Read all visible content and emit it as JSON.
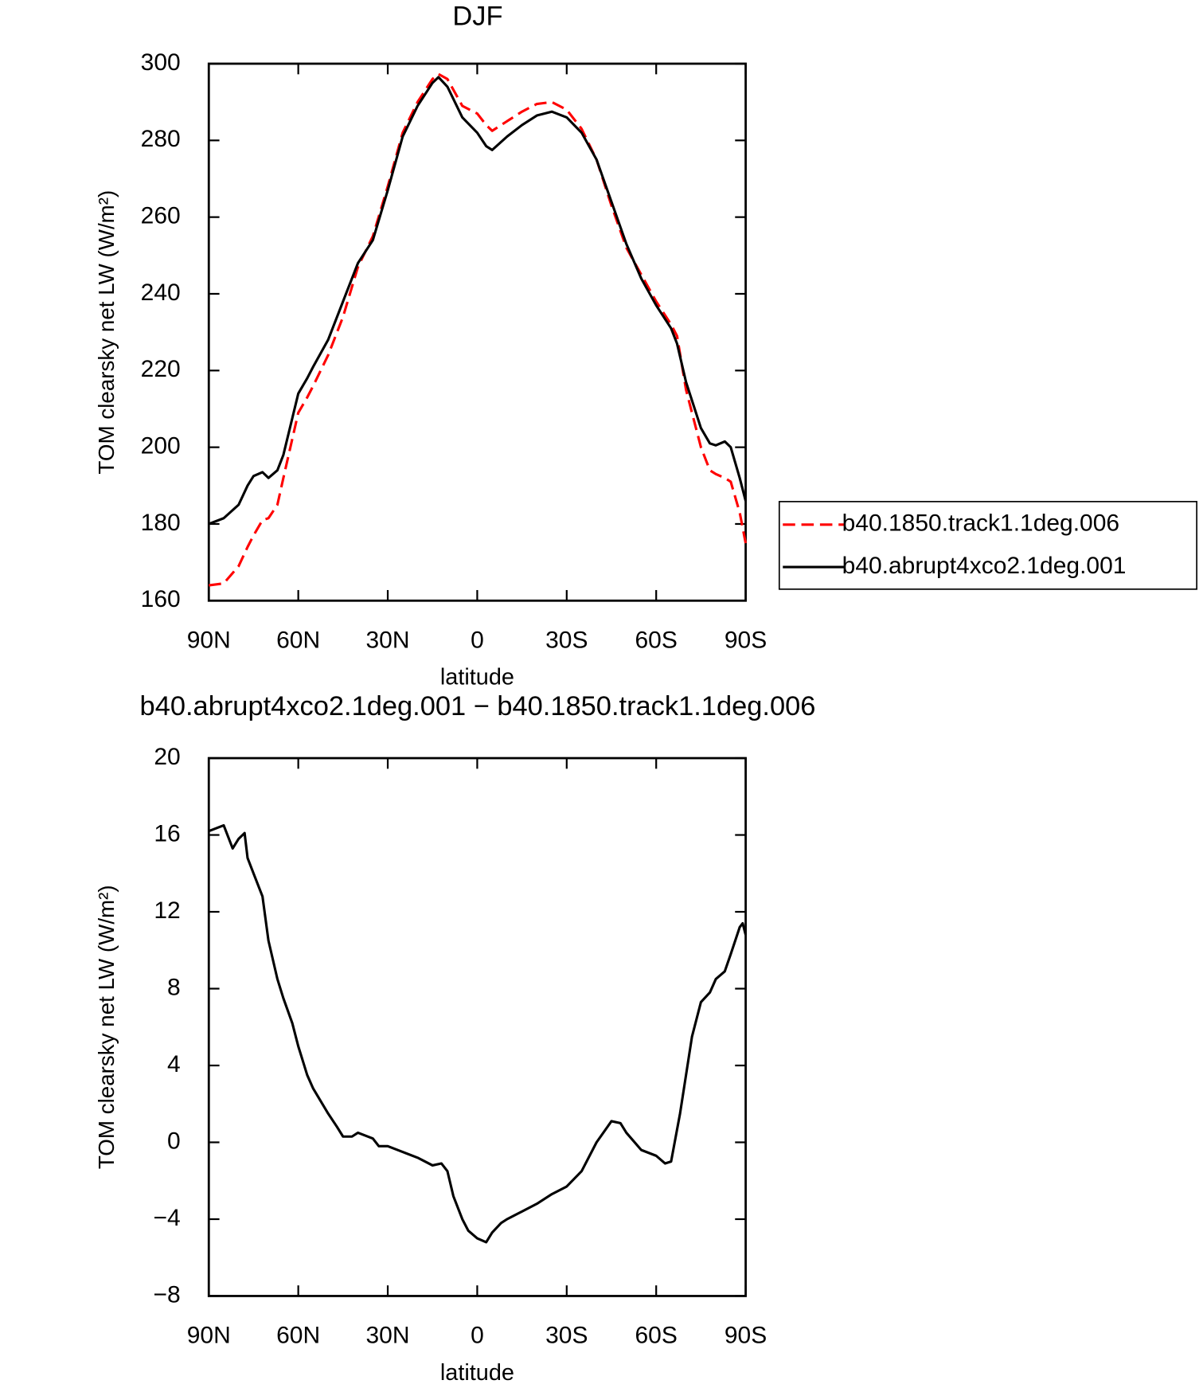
{
  "chart_data": [
    {
      "type": "line",
      "title": "DJF",
      "x_label": "latitude",
      "y_label": "TOM clearsky net LW (W/m²)",
      "x": [
        90,
        85,
        80,
        77,
        75,
        72,
        70,
        67,
        65,
        60,
        57,
        55,
        50,
        45,
        40,
        35,
        30,
        25,
        20,
        15,
        13,
        10,
        5,
        0,
        -3,
        -5,
        -10,
        -15,
        -20,
        -25,
        -30,
        -35,
        -40,
        -45,
        -50,
        -55,
        -60,
        -65,
        -67,
        -70,
        -75,
        -78,
        -80,
        -83,
        -85,
        -88,
        -90
      ],
      "series": [
        {
          "name": "b40.1850.track1.1deg.006",
          "color": "#ff0000",
          "style": "dashed",
          "values": [
            164,
            164.5,
            169,
            174,
            177,
            181,
            181.5,
            185,
            192,
            209,
            213,
            216,
            224,
            234,
            247,
            255,
            268,
            282,
            290,
            296,
            297.3,
            296,
            289,
            287,
            284,
            282.5,
            285,
            287.5,
            289.5,
            290,
            288,
            283,
            275,
            263,
            252,
            245,
            238,
            232,
            229,
            215,
            200,
            194,
            193,
            192,
            191,
            183,
            175
          ]
        },
        {
          "name": "b40.abrupt4xco2.1deg.001",
          "color": "#000000",
          "style": "solid",
          "values": [
            180,
            181.5,
            185,
            190,
            192.5,
            193.5,
            192,
            194,
            198,
            214,
            218,
            221,
            228,
            238,
            248,
            254,
            267,
            281,
            289,
            295,
            296.5,
            294,
            286,
            282,
            278.5,
            277.5,
            281,
            284,
            286.5,
            287.5,
            286,
            282,
            275,
            264,
            253,
            244,
            237,
            231,
            227,
            217,
            205,
            201,
            200.5,
            201.5,
            200,
            192,
            186
          ]
        }
      ],
      "xlim": [
        90,
        -90
      ],
      "xticks": [
        {
          "value": 90,
          "label": "90N"
        },
        {
          "value": 60,
          "label": "60N"
        },
        {
          "value": 30,
          "label": "30N"
        },
        0,
        {
          "value": -30,
          "label": "30S"
        },
        {
          "value": -60,
          "label": "60S"
        },
        {
          "value": -90,
          "label": "90S"
        }
      ],
      "ylim": [
        160,
        300
      ],
      "yticks": [
        160,
        180,
        200,
        220,
        240,
        260,
        280,
        300
      ],
      "legend": "right"
    },
    {
      "type": "line",
      "title": "b40.abrupt4xco2.1deg.001 − b40.1850.track1.1deg.006",
      "x_label": "latitude",
      "y_label": "TOM clearsky net LW (W/m²)",
      "x": [
        90,
        85,
        82,
        80,
        78,
        77,
        75,
        72,
        70,
        67,
        65,
        62,
        60,
        57,
        55,
        50,
        47,
        45,
        42,
        40,
        35,
        33,
        30,
        25,
        20,
        15,
        12,
        10,
        8,
        5,
        3,
        0,
        -3,
        -5,
        -8,
        -10,
        -15,
        -20,
        -25,
        -30,
        -35,
        -40,
        -45,
        -48,
        -50,
        -55,
        -60,
        -63,
        -65,
        -68,
        -70,
        -72,
        -75,
        -78,
        -80,
        -83,
        -85,
        -88,
        -89,
        -90
      ],
      "series": [
        {
          "color": "#000000",
          "style": "solid",
          "values": [
            16.2,
            16.5,
            15.3,
            15.8,
            16.1,
            14.8,
            14,
            12.8,
            10.5,
            8.5,
            7.5,
            6.2,
            5,
            3.5,
            2.8,
            1.5,
            0.8,
            0.3,
            0.3,
            0.5,
            0.2,
            -0.2,
            -0.2,
            -0.5,
            -0.8,
            -1.2,
            -1.1,
            -1.5,
            -2.8,
            -4,
            -4.6,
            -5,
            -5.2,
            -4.7,
            -4.2,
            -4,
            -3.6,
            -3.2,
            -2.7,
            -2.3,
            -1.5,
            0,
            1.1,
            1,
            0.5,
            -0.4,
            -0.7,
            -1.1,
            -1,
            1.5,
            3.5,
            5.5,
            7.3,
            7.8,
            8.5,
            8.9,
            9.8,
            11.2,
            11.4,
            10.8
          ]
        }
      ],
      "xlim": [
        90,
        -90
      ],
      "xticks": [
        {
          "value": 90,
          "label": "90N"
        },
        {
          "value": 60,
          "label": "60N"
        },
        {
          "value": 30,
          "label": "30N"
        },
        0,
        {
          "value": -30,
          "label": "30S"
        },
        {
          "value": -60,
          "label": "60S"
        },
        {
          "value": -90,
          "label": "90S"
        }
      ],
      "ylim": [
        -8,
        20
      ],
      "yticks": [
        {
          "value": -8,
          "label": "−8"
        },
        {
          "value": -4,
          "label": "−4"
        },
        0,
        4,
        8,
        12,
        16,
        20
      ]
    }
  ]
}
